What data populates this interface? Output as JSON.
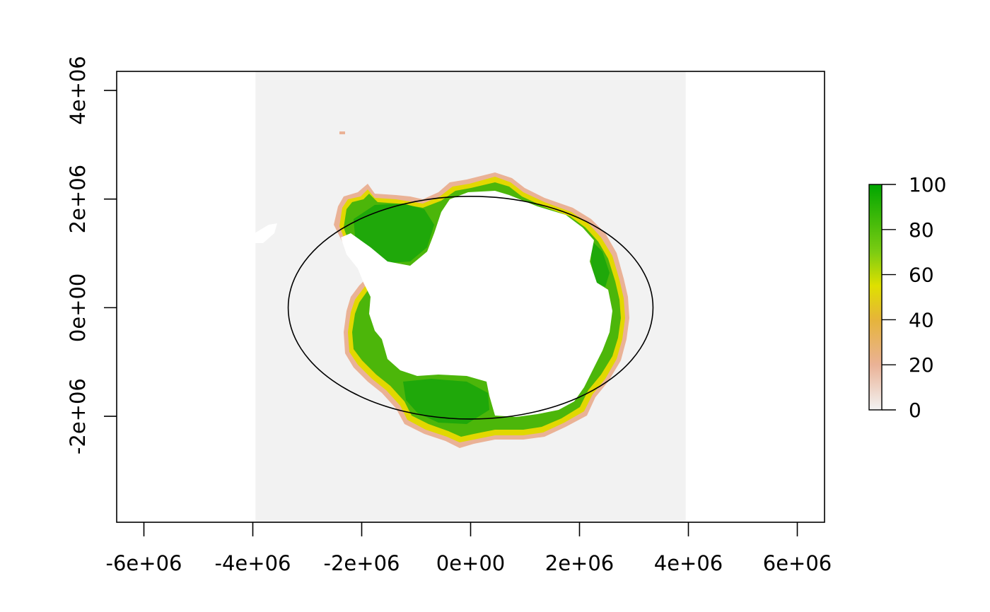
{
  "map": {
    "projection": "polar stereographic (south)",
    "x_axis": {
      "range": [
        -6500000,
        6500000
      ],
      "ticks": [
        {
          "value": -6000000,
          "label": "-6e+06"
        },
        {
          "value": -4000000,
          "label": "-4e+06"
        },
        {
          "value": -2000000,
          "label": "-2e+06"
        },
        {
          "value": 0,
          "label": "0e+00"
        },
        {
          "value": 2000000,
          "label": "2e+06"
        },
        {
          "value": 4000000,
          "label": "4e+06"
        },
        {
          "value": 6000000,
          "label": "6e+06"
        }
      ]
    },
    "y_axis": {
      "range": [
        -3950000,
        4350000
      ],
      "ticks": [
        {
          "value": -2000000,
          "label": "-2e+06"
        },
        {
          "value": 0,
          "label": "0e+00"
        },
        {
          "value": 2000000,
          "label": "2e+06"
        },
        {
          "value": 4000000,
          "label": "4e+06"
        }
      ]
    },
    "raster_extent": {
      "x": [
        -3950000,
        3950000
      ],
      "y": [
        -3950000,
        4350000
      ]
    },
    "ellipse": {
      "center": [
        0,
        0
      ],
      "radius_x": 3350000,
      "radius_y": 2050000
    }
  },
  "legend": {
    "title": "",
    "min": 0,
    "max": 100,
    "ticks": [
      {
        "value": 0,
        "label": "0"
      },
      {
        "value": 20,
        "label": "20"
      },
      {
        "value": 40,
        "label": "40"
      },
      {
        "value": 60,
        "label": "60"
      },
      {
        "value": 80,
        "label": "80"
      },
      {
        "value": 100,
        "label": "100"
      }
    ],
    "color_stops": [
      {
        "value": 0,
        "color": "#f2f2f2"
      },
      {
        "value": 20,
        "color": "#eab296"
      },
      {
        "value": 40,
        "color": "#e6b43a"
      },
      {
        "value": 55,
        "color": "#dfe000"
      },
      {
        "value": 70,
        "color": "#7ccc12"
      },
      {
        "value": 100,
        "color": "#00a600"
      }
    ]
  },
  "colors": {
    "background_raster": "#f2f2f2",
    "continent": "#ffffff",
    "ice_high": "#1fa80a",
    "ice_mid": "#4cb60a",
    "ice_edge_yellow": "#e2d800",
    "ice_edge_pink": "#eab296"
  }
}
